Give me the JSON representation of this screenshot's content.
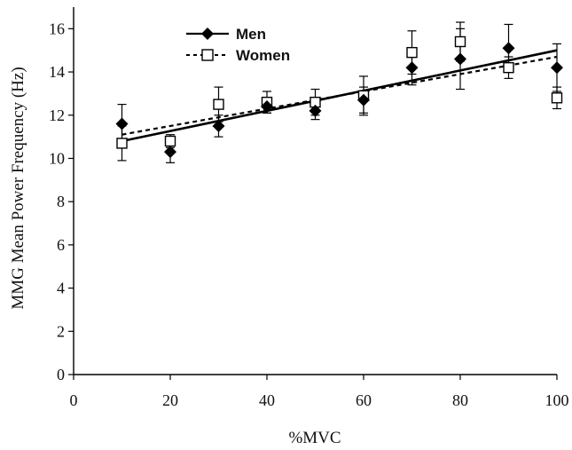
{
  "chart_data": {
    "type": "scatter",
    "xlabel": "%MVC",
    "ylabel": "MMG Mean Power Frequency (Hz)",
    "xlim": [
      0,
      100
    ],
    "ylim": [
      0,
      17
    ],
    "x_ticks": [
      "0",
      "20",
      "40",
      "60",
      "80",
      "100"
    ],
    "y_ticks": [
      "0",
      "2",
      "4",
      "6",
      "8",
      "10",
      "12",
      "14",
      "16"
    ],
    "legend_position": "top-left",
    "grid": false,
    "series": [
      {
        "name": "Men",
        "marker": "filled-diamond",
        "color": "#000000",
        "x": [
          10,
          20,
          30,
          40,
          50,
          60,
          70,
          80,
          90,
          100
        ],
        "y": [
          11.6,
          10.3,
          11.5,
          12.4,
          12.2,
          12.7,
          14.2,
          14.6,
          15.1,
          14.2
        ],
        "err": [
          0.9,
          0.5,
          0.5,
          0.3,
          0.4,
          0.6,
          0.8,
          1.4,
          1.1,
          1.1
        ],
        "trend": [
          10.8,
          15.0
        ],
        "trend_style": "solid"
      },
      {
        "name": "Women",
        "marker": "open-square",
        "color": "#000000",
        "x": [
          10,
          20,
          30,
          40,
          50,
          60,
          70,
          80,
          90,
          100
        ],
        "y": [
          10.7,
          10.8,
          12.5,
          12.6,
          12.6,
          12.9,
          14.9,
          15.4,
          14.2,
          12.8
        ],
        "err": [
          0.8,
          0.3,
          0.8,
          0.5,
          0.6,
          0.9,
          1.0,
          0.9,
          0.5,
          0.5
        ],
        "trend": [
          11.1,
          14.7
        ],
        "trend_style": "dashed"
      }
    ]
  }
}
